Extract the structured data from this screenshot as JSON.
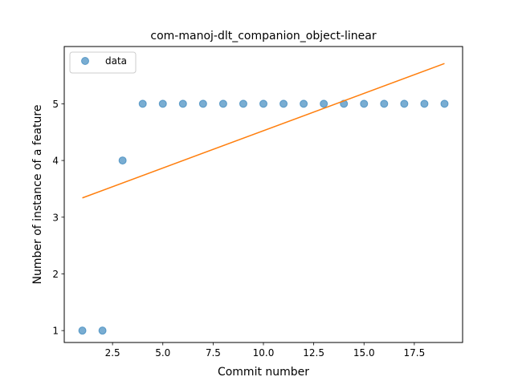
{
  "chart_data": {
    "type": "scatter",
    "title": "com-manoj-dlt_companion_object-linear",
    "xlabel": "Commit number",
    "ylabel": "Number of instance of a feature",
    "xlim": [
      0.1,
      19.9
    ],
    "ylim": [
      0.79,
      6.01
    ],
    "xticks": [
      2.5,
      5.0,
      7.5,
      10.0,
      12.5,
      15.0,
      17.5
    ],
    "xtick_labels": [
      "2.5",
      "5.0",
      "7.5",
      "10.0",
      "12.5",
      "15.0",
      "17.5"
    ],
    "yticks": [
      1,
      2,
      3,
      4,
      5
    ],
    "ytick_labels": [
      "1",
      "2",
      "3",
      "4",
      "5"
    ],
    "grid": false,
    "legend_position": "upper left",
    "series": [
      {
        "name": "data",
        "kind": "scatter",
        "color": "#1f77b4",
        "x": [
          1,
          2,
          3,
          4,
          5,
          6,
          7,
          8,
          9,
          10,
          11,
          12,
          13,
          14,
          15,
          16,
          17,
          18,
          19
        ],
        "y": [
          1,
          1,
          4,
          5,
          5,
          5,
          5,
          5,
          5,
          5,
          5,
          5,
          5,
          5,
          5,
          5,
          5,
          5,
          5
        ]
      },
      {
        "kind": "line",
        "color": "#ff7f0e",
        "x": [
          1,
          19
        ],
        "y": [
          3.34,
          5.71
        ]
      }
    ]
  }
}
